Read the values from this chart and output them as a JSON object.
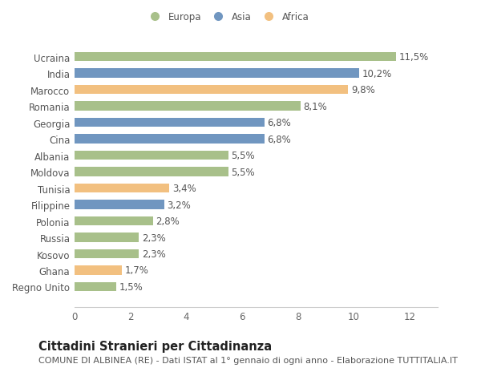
{
  "countries": [
    "Regno Unito",
    "Ghana",
    "Kosovo",
    "Russia",
    "Polonia",
    "Filippine",
    "Tunisia",
    "Moldova",
    "Albania",
    "Cina",
    "Georgia",
    "Romania",
    "Marocco",
    "India",
    "Ucraina"
  ],
  "values": [
    1.5,
    1.7,
    2.3,
    2.3,
    2.8,
    3.2,
    3.4,
    5.5,
    5.5,
    6.8,
    6.8,
    8.1,
    9.8,
    10.2,
    11.5
  ],
  "continents": [
    "Europa",
    "Africa",
    "Europa",
    "Europa",
    "Europa",
    "Asia",
    "Africa",
    "Europa",
    "Europa",
    "Asia",
    "Asia",
    "Europa",
    "Africa",
    "Asia",
    "Europa"
  ],
  "colors": {
    "Europa": "#a8c08a",
    "Asia": "#7096c0",
    "Africa": "#f2c080"
  },
  "legend_labels": [
    "Europa",
    "Asia",
    "Africa"
  ],
  "title": "Cittadini Stranieri per Cittadinanza",
  "subtitle": "COMUNE DI ALBINEA (RE) - Dati ISTAT al 1° gennaio di ogni anno - Elaborazione TUTTITALIA.IT",
  "xlim": [
    0,
    13.0
  ],
  "xticks": [
    0,
    2,
    4,
    6,
    8,
    10,
    12
  ],
  "background_color": "#ffffff",
  "bar_height": 0.55,
  "title_fontsize": 10.5,
  "subtitle_fontsize": 8,
  "label_fontsize": 8.5,
  "tick_fontsize": 8.5,
  "value_fontsize": 8.5
}
